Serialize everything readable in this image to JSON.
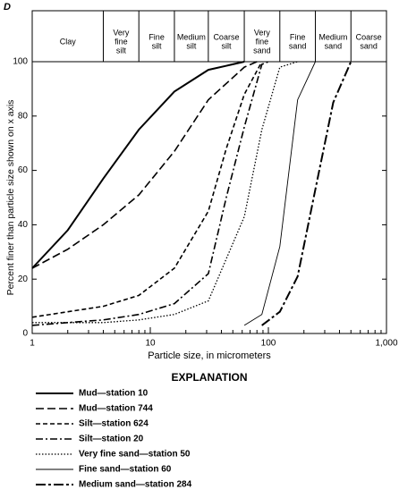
{
  "chart_data": {
    "type": "line",
    "panel": "D",
    "xlabel": "Particle size, in micrometers",
    "ylabel": "Percent finer than particle size shown on x axis",
    "xscale": "log",
    "xlim": [
      1,
      1000
    ],
    "xticks": [
      1,
      10,
      100,
      {
        "value": 1000,
        "label": "1,000"
      }
    ],
    "minor_xticks": [
      2,
      3,
      4,
      5,
      6,
      7,
      8,
      9,
      20,
      30,
      40,
      50,
      60,
      70,
      80,
      90,
      200,
      300,
      400,
      500,
      600,
      700,
      800,
      900
    ],
    "ylim": [
      0,
      100
    ],
    "yticks": [
      0,
      20,
      40,
      60,
      80,
      100
    ],
    "size_classes": [
      {
        "label": [
          "Clay"
        ],
        "max": 4
      },
      {
        "label": [
          "Very",
          "fine",
          "silt"
        ],
        "max": 8
      },
      {
        "label": [
          "Fine",
          "silt"
        ],
        "max": 16
      },
      {
        "label": [
          "Medium",
          "silt"
        ],
        "max": 31
      },
      {
        "label": [
          "Coarse",
          "silt"
        ],
        "max": 62.5
      },
      {
        "label": [
          "Very",
          "fine",
          "sand"
        ],
        "max": 125
      },
      {
        "label": [
          "Fine",
          "sand"
        ],
        "max": 250
      },
      {
        "label": [
          "Medium",
          "sand"
        ],
        "max": 500
      },
      {
        "label": [
          "Coarse",
          "sand"
        ]
      }
    ],
    "legend_title": "EXPLANATION",
    "series": [
      {
        "name": "Mud—station 10",
        "color": "#000000",
        "width": 2,
        "dash": "none",
        "x": [
          1,
          2,
          4,
          8,
          16,
          31,
          62.5
        ],
        "values": [
          24,
          38,
          57,
          75,
          89,
          97,
          100
        ]
      },
      {
        "name": "Mud—station 744",
        "color": "#000000",
        "width": 1.6,
        "dash": "9 4",
        "x": [
          1,
          2,
          4,
          8,
          16,
          31,
          62.5,
          80
        ],
        "values": [
          24,
          31,
          40,
          51,
          67,
          86,
          98,
          100
        ]
      },
      {
        "name": "Silt—station 624",
        "color": "#000000",
        "width": 1.6,
        "dash": "5 3",
        "x": [
          1,
          2,
          4,
          8,
          16,
          31,
          44,
          62.5,
          88
        ],
        "values": [
          6,
          8,
          10,
          14,
          24,
          45,
          68,
          88,
          100
        ]
      },
      {
        "name": "Silt—station 20",
        "color": "#000000",
        "width": 1.6,
        "dash": "8 3 2 3",
        "x": [
          1,
          2,
          4,
          8,
          16,
          31,
          44,
          62.5,
          88,
          100
        ],
        "values": [
          3,
          4,
          5,
          7,
          11,
          22,
          50,
          76,
          99,
          100
        ]
      },
      {
        "name": "Very fine sand—station 50",
        "color": "#000000",
        "width": 1.3,
        "dash": "1.5 2",
        "x": [
          1,
          2,
          4,
          8,
          16,
          31,
          62.5,
          88,
          125,
          177
        ],
        "values": [
          4,
          4,
          4,
          5,
          7,
          12,
          43,
          75,
          98,
          100
        ]
      },
      {
        "name": "Fine sand—station 60",
        "color": "#000000",
        "width": 0.9,
        "dash": "none",
        "x": [
          62.5,
          88,
          125,
          177,
          250
        ],
        "values": [
          3,
          7,
          32,
          86,
          100
        ]
      },
      {
        "name": "Medium sand—station 284",
        "color": "#000000",
        "width": 2,
        "dash": "11 3 3 3",
        "x": [
          88,
          125,
          177,
          250,
          354,
          500
        ],
        "values": [
          3,
          8,
          21,
          53,
          85,
          100
        ]
      }
    ]
  }
}
